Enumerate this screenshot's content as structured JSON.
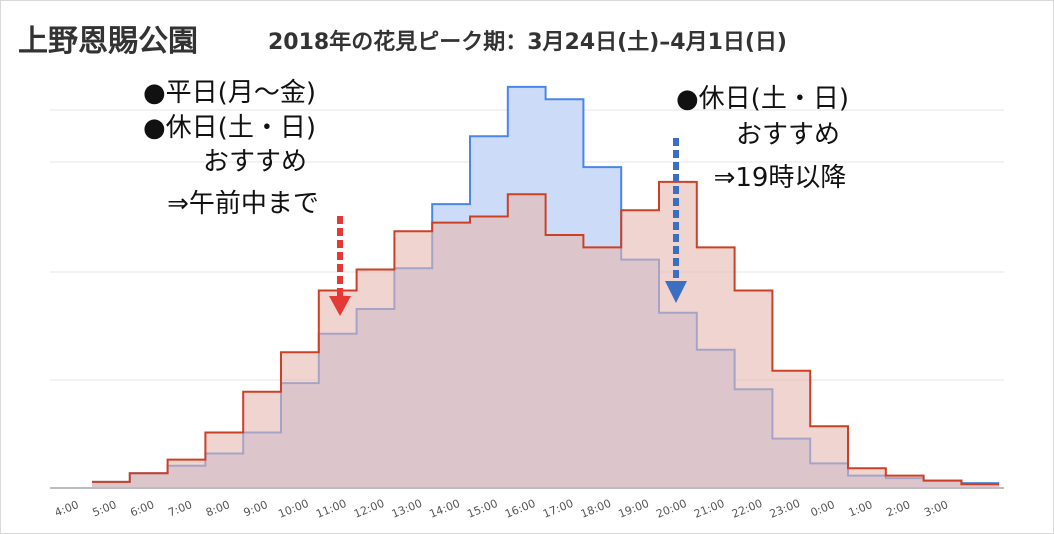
{
  "chart_data": {
    "type": "area",
    "title": "上野恩賜公園",
    "subtitle": "2018年の花見ピーク期：3月24日(土)–4月1日(日)",
    "x": [
      "4:00",
      "5:00",
      "6:00",
      "7:00",
      "8:00",
      "9:00",
      "10:00",
      "11:00",
      "12:00",
      "13:00",
      "14:00",
      "15:00",
      "16:00",
      "17:00",
      "18:00",
      "19:00",
      "20:00",
      "21:00",
      "22:00",
      "23:00",
      "0:00",
      "1:00",
      "2:00",
      "3:00"
    ],
    "series": [
      {
        "color": "#4a86e8",
        "fill": "#c9daf8",
        "values": [
          0.5,
          1.2,
          1.8,
          2.8,
          4.5,
          8.5,
          12.5,
          14.5,
          17.8,
          23.0,
          28.5,
          32.5,
          31.5,
          26.0,
          18.5,
          14.2,
          11.2,
          8.0,
          4.0,
          2.0,
          1.0,
          0.8,
          0.6,
          0.4
        ]
      },
      {
        "color": "#cc4125",
        "fill": "#e6b8af",
        "values": [
          0.5,
          1.2,
          2.3,
          4.5,
          7.8,
          11.0,
          16.0,
          17.7,
          20.8,
          21.5,
          22.0,
          23.8,
          20.5,
          19.5,
          22.5,
          24.8,
          19.5,
          16.0,
          9.5,
          5.0,
          1.6,
          1.0,
          0.6,
          0.3
        ]
      }
    ],
    "ylim": [
      0,
      35
    ],
    "grid": true,
    "annotations": [
      {
        "lines": [
          "●平日(月～金)",
          "●休日(土・日)",
          "おすすめ",
          "⇒午前中まで"
        ],
        "arrow_at": "11:00",
        "arrow_color": "#e53935"
      },
      {
        "lines": [
          "●休日(土・日)",
          "おすすめ",
          "⇒19時以降"
        ],
        "arrow_at": "20:00",
        "arrow_color": "#3a6fc4"
      }
    ]
  }
}
